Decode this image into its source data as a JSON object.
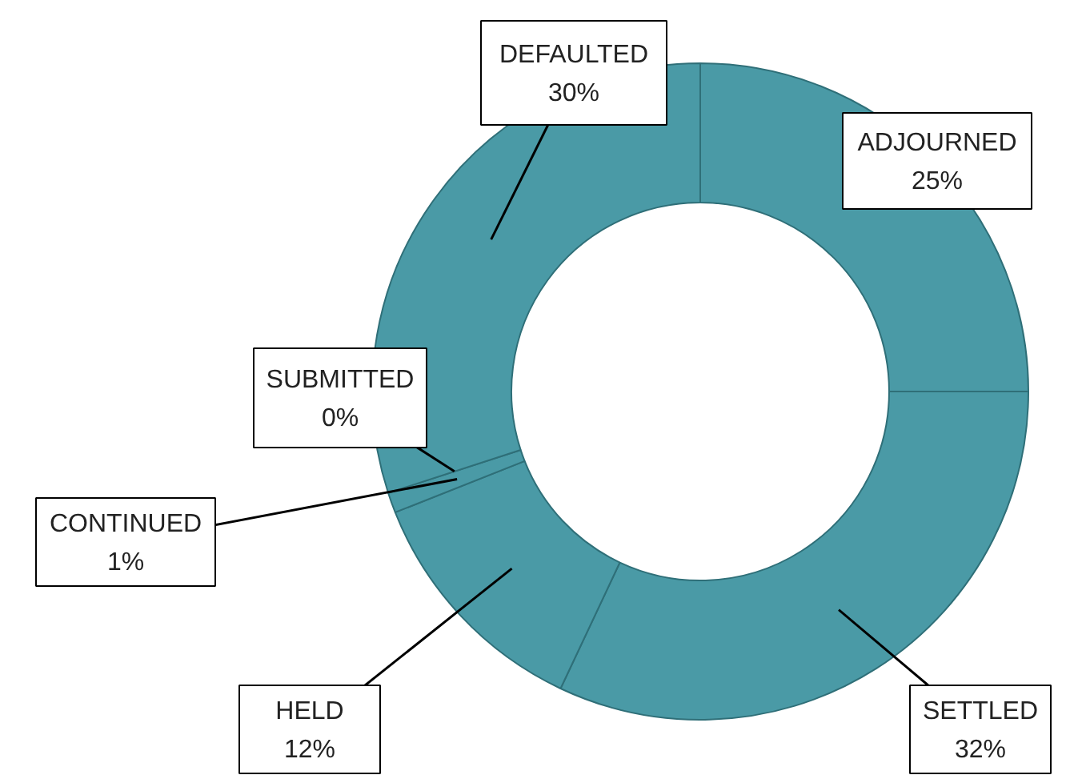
{
  "chart_data": {
    "type": "donut",
    "categories": [
      "ADJOURNED",
      "SETTLED",
      "HELD",
      "CONTINUED",
      "SUBMITTED",
      "DEFAULTED"
    ],
    "values": [
      25,
      32,
      12,
      1,
      0,
      30
    ],
    "value_labels": [
      "25%",
      "32%",
      "12%",
      "1%",
      "0%",
      "30%"
    ],
    "colors": [
      "#4a9aa6",
      "#4a9aa6",
      "#4a9aa6",
      "#4a9aa6",
      "#4a9aa6",
      "#4a9aa6"
    ]
  }
}
